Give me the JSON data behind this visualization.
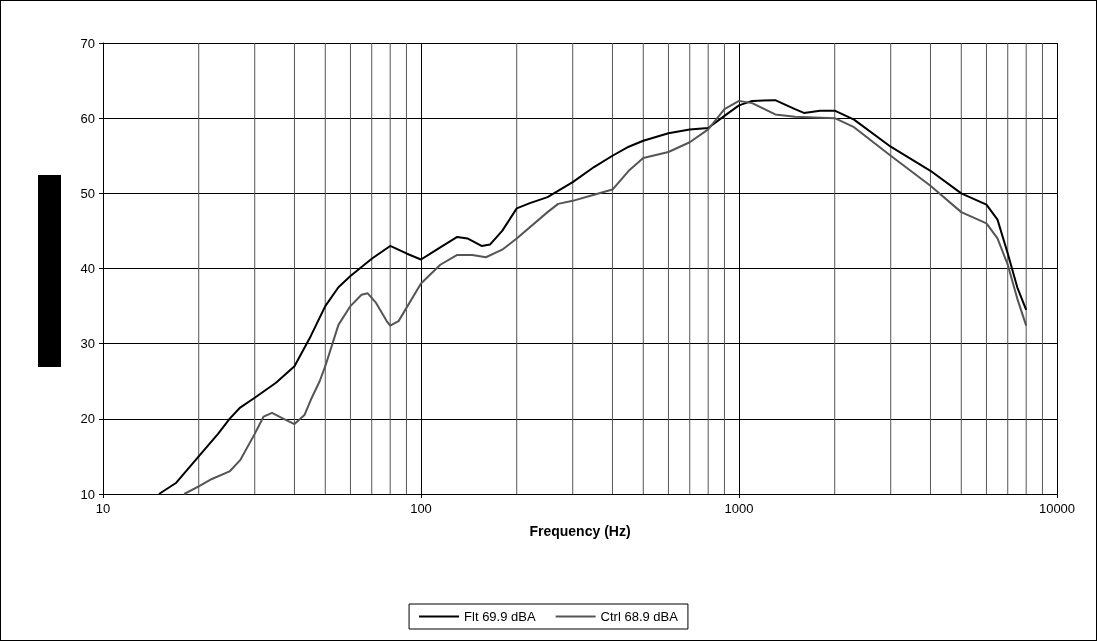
{
  "chart_data": {
    "type": "line",
    "xlabel": "Frequency (Hz)",
    "log": "x",
    "grid": true,
    "legend": "bottom",
    "marker": "none",
    "line_style": "solid",
    "xlim": [
      10,
      10000
    ],
    "xticks": [
      10,
      100,
      1000,
      10000
    ],
    "ylim": [
      10,
      70
    ],
    "yticks": [
      10,
      20,
      30,
      40,
      50,
      60,
      70
    ],
    "series": [
      {
        "name": "Flt 69.9 dBA",
        "color": "#000000",
        "x": [
          15,
          17,
          20,
          23,
          25,
          27,
          30,
          35,
          40,
          45,
          50,
          55,
          60,
          70,
          80,
          90,
          100,
          115,
          130,
          140,
          155,
          165,
          180,
          200,
          220,
          250,
          300,
          350,
          400,
          450,
          500,
          600,
          700,
          800,
          900,
          1000,
          1100,
          1300,
          1500,
          1600,
          1800,
          2000,
          2300,
          3000,
          4000,
          5000,
          6000,
          6500,
          7000,
          7500,
          8000
        ],
        "values": [
          10,
          11.5,
          15,
          18,
          20,
          21.5,
          22.8,
          24.8,
          27,
          31,
          35,
          37.5,
          39,
          41.3,
          43,
          42,
          41.2,
          42.8,
          44.2,
          44,
          43,
          43.2,
          45,
          48,
          48.7,
          49.5,
          51.5,
          53.5,
          55,
          56.2,
          57,
          58,
          58.5,
          58.7,
          60.3,
          61.7,
          62.3,
          62.4,
          61.2,
          60.7,
          61,
          61,
          59.8,
          56.2,
          53,
          50,
          48.5,
          46.5,
          42,
          37.5,
          34.5
        ]
      },
      {
        "name": "Ctrl 68.9 dBA",
        "color": "#555555",
        "x": [
          18,
          20,
          22,
          25,
          27,
          30,
          32,
          34,
          37,
          40,
          43,
          45,
          48,
          50,
          55,
          60,
          65,
          68,
          72,
          78,
          80,
          85,
          100,
          115,
          130,
          145,
          160,
          180,
          200,
          250,
          270,
          300,
          350,
          400,
          450,
          500,
          600,
          700,
          800,
          900,
          1000,
          1100,
          1300,
          1500,
          2000,
          2300,
          3000,
          4000,
          5000,
          6000,
          6500,
          7000,
          7500,
          8000
        ],
        "values": [
          10,
          11,
          12,
          13,
          14.5,
          18,
          20.3,
          20.8,
          20,
          19.3,
          20.5,
          22.5,
          25,
          27,
          32.5,
          35,
          36.5,
          36.7,
          35.5,
          33,
          32.4,
          33,
          38,
          40.5,
          41.8,
          41.8,
          41.5,
          42.5,
          44,
          47.5,
          48.6,
          49,
          49.8,
          50.5,
          53,
          54.7,
          55.5,
          56.8,
          58.5,
          61.2,
          62.3,
          62,
          60.5,
          60.2,
          60,
          58.8,
          55,
          51,
          47.5,
          46,
          44,
          40.5,
          36,
          32.4
        ]
      }
    ]
  }
}
